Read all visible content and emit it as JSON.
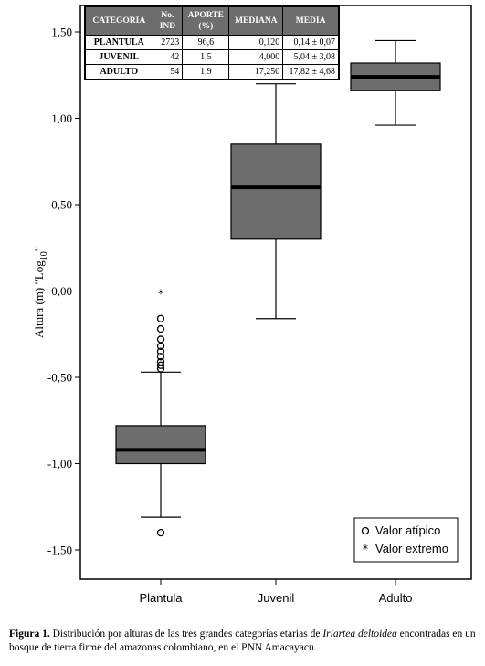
{
  "chart_data": {
    "type": "boxplot",
    "ylabel_main": "Altura (m) \"Log",
    "ylabel_sub": "10",
    "ylabel_end": "\"",
    "ylim": [
      -1.65,
      1.65
    ],
    "yticks": [
      {
        "value": 1.5,
        "label": "1,50"
      },
      {
        "value": 1.0,
        "label": "1,00"
      },
      {
        "value": 0.5,
        "label": "0,50"
      },
      {
        "value": 0.0,
        "label": "0,00"
      },
      {
        "value": -0.5,
        "label": "-0,50"
      },
      {
        "value": -1.0,
        "label": "-1,00"
      },
      {
        "value": -1.5,
        "label": "-1,50"
      }
    ],
    "categories": [
      "Plantula",
      "Juvenil",
      "Adulto"
    ],
    "boxes": [
      {
        "category": "Plantula",
        "whisker_low": -1.31,
        "q1": -1.0,
        "median": -0.92,
        "q3": -0.78,
        "whisker_high": -0.47,
        "outliers": [
          -1.4,
          -0.45,
          -0.43,
          -0.41,
          -0.38,
          -0.35,
          -0.32,
          -0.28,
          -0.22,
          -0.16
        ],
        "extremes": [
          0.0
        ]
      },
      {
        "category": "Juvenil",
        "whisker_low": -0.16,
        "q1": 0.3,
        "median": 0.6,
        "q3": 0.85,
        "whisker_high": 1.2,
        "outliers": [],
        "extremes": []
      },
      {
        "category": "Adulto",
        "whisker_low": 0.96,
        "q1": 1.16,
        "median": 1.24,
        "q3": 1.32,
        "whisker_high": 1.45,
        "outliers": [],
        "extremes": []
      }
    ],
    "legend": {
      "position": "bottom-right",
      "items": [
        {
          "symbol": "circle",
          "label": "Valor atípico"
        },
        {
          "symbol": "star",
          "label": "Valor extremo"
        }
      ]
    },
    "colors": {
      "box_fill": "#6d6d6d",
      "median": "#000000",
      "axis": "#000000"
    }
  },
  "table": {
    "headers": [
      "CATEGORIA",
      "No.\nIND",
      "APORTE\n(%)",
      "MEDIANA",
      "MEDIA"
    ],
    "header_lines": [
      [
        "CATEGORIA"
      ],
      [
        "No.",
        "IND"
      ],
      [
        "APORTE",
        "(%)"
      ],
      [
        "MEDIANA"
      ],
      [
        "MEDIA"
      ]
    ],
    "rows": [
      {
        "categoria": "PLANTULA",
        "n": "2723",
        "aporte": "96,6",
        "mediana": "0,120",
        "media": "0,14 ± 0,07"
      },
      {
        "categoria": "JUVENIL",
        "n": "42",
        "aporte": "1,5",
        "mediana": "4,000",
        "media": "5,04 ± 3,08"
      },
      {
        "categoria": "ADULTO",
        "n": "54",
        "aporte": "1,9",
        "mediana": "17,250",
        "media": "17,82 ± 4,68"
      }
    ]
  },
  "caption": {
    "label": "Figura 1.",
    "text_before": " Distribución por alturas de las tres grandes categorías etarias de ",
    "species": "Iriartea deltoidea",
    "text_after": " encontradas en un bosque de tierra firme del amazonas colombiano, en el PNN Amacayacu."
  }
}
